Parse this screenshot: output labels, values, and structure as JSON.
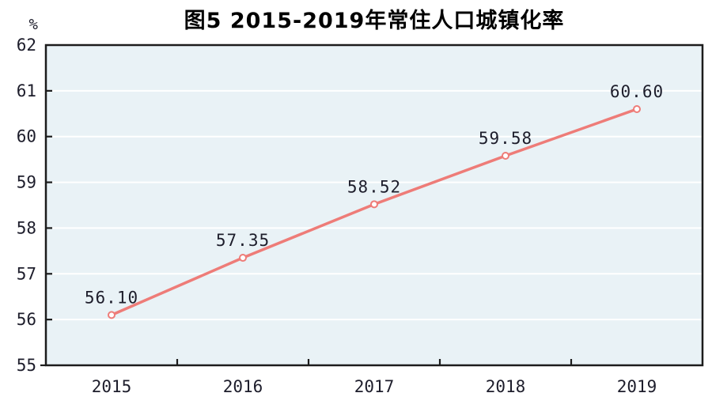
{
  "figure": {
    "title": "图5  2015-2019年常住人口城镇化率",
    "y_unit_label": "%"
  },
  "chart_data": {
    "type": "line",
    "title": "图5  2015-2019年常住人口城镇化率",
    "y_unit": "%",
    "categories": [
      "2015",
      "2016",
      "2017",
      "2018",
      "2019"
    ],
    "values": [
      56.1,
      57.35,
      58.52,
      59.58,
      60.6
    ],
    "point_labels": [
      "56.10",
      "57.35",
      "58.52",
      "59.58",
      "60.60"
    ],
    "ylim": [
      55,
      62
    ],
    "y_tick_interval": 1,
    "y_tick_labels": [
      "55",
      "56",
      "57",
      "58",
      "59",
      "60",
      "61",
      "62"
    ],
    "grid": "horizontal",
    "legend": "none",
    "marker": "open-circle",
    "colors": {
      "line": "#ee7c78",
      "marker_fill": "#ffffff",
      "plot_background": "#e9f2f6",
      "gridline": "#ffffff",
      "axis_frame": "#1c1c1c",
      "label_text": "#1d1d2b",
      "title_text": "#000000"
    }
  }
}
